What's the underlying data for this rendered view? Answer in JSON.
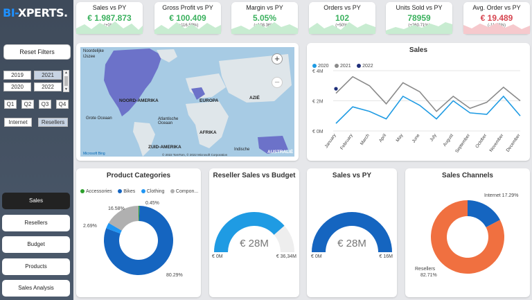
{
  "brand": {
    "logo_part1": "BI-",
    "logo_part2": "XPERTS.",
    "accent": "#1e90ff"
  },
  "filters": {
    "reset_label": "Reset Filters",
    "years": [
      "2019",
      "2021",
      "2020",
      "2022"
    ],
    "selected_year": "2021",
    "quarters": [
      "Q1",
      "Q2",
      "Q3",
      "Q4"
    ],
    "channels": [
      "Internet",
      "Resellers"
    ],
    "selected_channel": "Resellers"
  },
  "nav": {
    "items": [
      "Sales",
      "Resellers",
      "Budget",
      "Products",
      "Sales Analysis"
    ],
    "active": "Sales"
  },
  "kpis": [
    {
      "title": "Sales vs PY",
      "value": "€ 1.987.873",
      "delta": "(+0%)",
      "status": "positive"
    },
    {
      "title": "Gross Profit vs PY",
      "value": "€ 100.409",
      "delta": "(+116.59%)",
      "status": "positive"
    },
    {
      "title": "Margin vs PY",
      "value": "5.05%",
      "delta": "(+108.36%)",
      "status": "positive"
    },
    {
      "title": "Orders vs PY",
      "value": "102",
      "delta": "(+50%)",
      "status": "positive"
    },
    {
      "title": "Units Sold vs PY",
      "value": "78959",
      "delta": "(+260.71%)",
      "status": "positive"
    },
    {
      "title": "Avg. Order vs PY",
      "value": "€ 19.489",
      "delta": "(-11.58%)",
      "status": "negative"
    }
  ],
  "map": {
    "labels": {
      "nordelijke": "Noordelijke",
      "ijszee": "IJszee",
      "noord_amerika": "NOORD-AMERIKA",
      "europa": "EUROPA",
      "azie": "AZIË",
      "afrika": "AFRIKA",
      "zuid_amerika": "ZUID-AMERIKA",
      "australie": "AUSTRALIË",
      "grote_oceaan": "Grote Oceaan",
      "atlantische_oceaan": "Atlantische Oceaan",
      "indische": "Indische"
    },
    "attribution": "© 2022 TomTom, © 2022 Microsoft Corporation",
    "bing": "Microsoft Bing",
    "zoom_in": "+",
    "zoom_out": "−"
  },
  "sales_chart": {
    "title": "Sales",
    "chart_data": {
      "type": "line",
      "title": "Sales",
      "categories": [
        "January",
        "February",
        "March",
        "April",
        "May",
        "June",
        "July",
        "August",
        "September",
        "October",
        "November",
        "December"
      ],
      "ytick_labels": [
        "€ 0M",
        "€ 2M",
        "€ 4M"
      ],
      "ylim": [
        0,
        4
      ],
      "series": [
        {
          "name": "2020",
          "color": "#1f9be3",
          "values": [
            0.5,
            1.6,
            1.3,
            0.8,
            2.3,
            1.7,
            0.8,
            2.0,
            1.2,
            1.1,
            2.3,
            1.0
          ]
        },
        {
          "name": "2021",
          "color": "#8a8a8a",
          "values": [
            2.5,
            3.6,
            3.0,
            1.8,
            3.2,
            2.6,
            1.3,
            2.3,
            1.5,
            1.9,
            2.9,
            2.0
          ]
        },
        {
          "name": "2022",
          "color": "#1f2f7a",
          "values": [
            2.8,
            null,
            null,
            null,
            null,
            null,
            null,
            null,
            null,
            null,
            null,
            null
          ]
        }
      ],
      "legend": "top-left"
    }
  },
  "product_categories": {
    "title": "Product Categories",
    "chart_data": {
      "type": "pie",
      "title": "Product Categories",
      "legend_labels": [
        "Accessories",
        "Bikes",
        "Clothing",
        "Compon..."
      ],
      "slices": [
        {
          "name": "Accessories",
          "value": 0.45,
          "label": "0.45%",
          "color": "#2ca02c"
        },
        {
          "name": "Bikes",
          "value": 80.29,
          "label": "80.29%",
          "color": "#1565c0"
        },
        {
          "name": "Clothing",
          "value": 2.69,
          "label": "2.69%",
          "color": "#2196f3"
        },
        {
          "name": "Components",
          "value": 16.58,
          "label": "16.58%",
          "color": "#b0b0b0"
        }
      ]
    }
  },
  "reseller_budget": {
    "title": "Reseller Sales vs Budget",
    "chart_data": {
      "type": "gauge",
      "title": "Reseller Sales vs Budget",
      "value_label": "€ 28M",
      "value": 28,
      "min": 0,
      "max": 36.34,
      "min_label": "€ 0M",
      "max_label": "€ 36,34M",
      "color": "#1f9be3"
    }
  },
  "sales_vs_py": {
    "title": "Sales vs PY",
    "chart_data": {
      "type": "gauge",
      "title": "Sales vs PY",
      "value_label": "€ 28M",
      "value": 28,
      "min": 0,
      "max": 16,
      "min_label": "€ 0M",
      "max_label": "€ 16M",
      "color": "#1565c0"
    }
  },
  "sales_channels": {
    "title": "Sales Channels",
    "chart_data": {
      "type": "pie",
      "title": "Sales Channels",
      "slices": [
        {
          "name": "Internet",
          "value": 17.29,
          "label": "Internet 17.29%",
          "color": "#1565c0"
        },
        {
          "name": "Resellers",
          "value": 82.71,
          "label_name": "Resellers",
          "label_pct": "82.71%",
          "color": "#f07040"
        }
      ]
    }
  }
}
